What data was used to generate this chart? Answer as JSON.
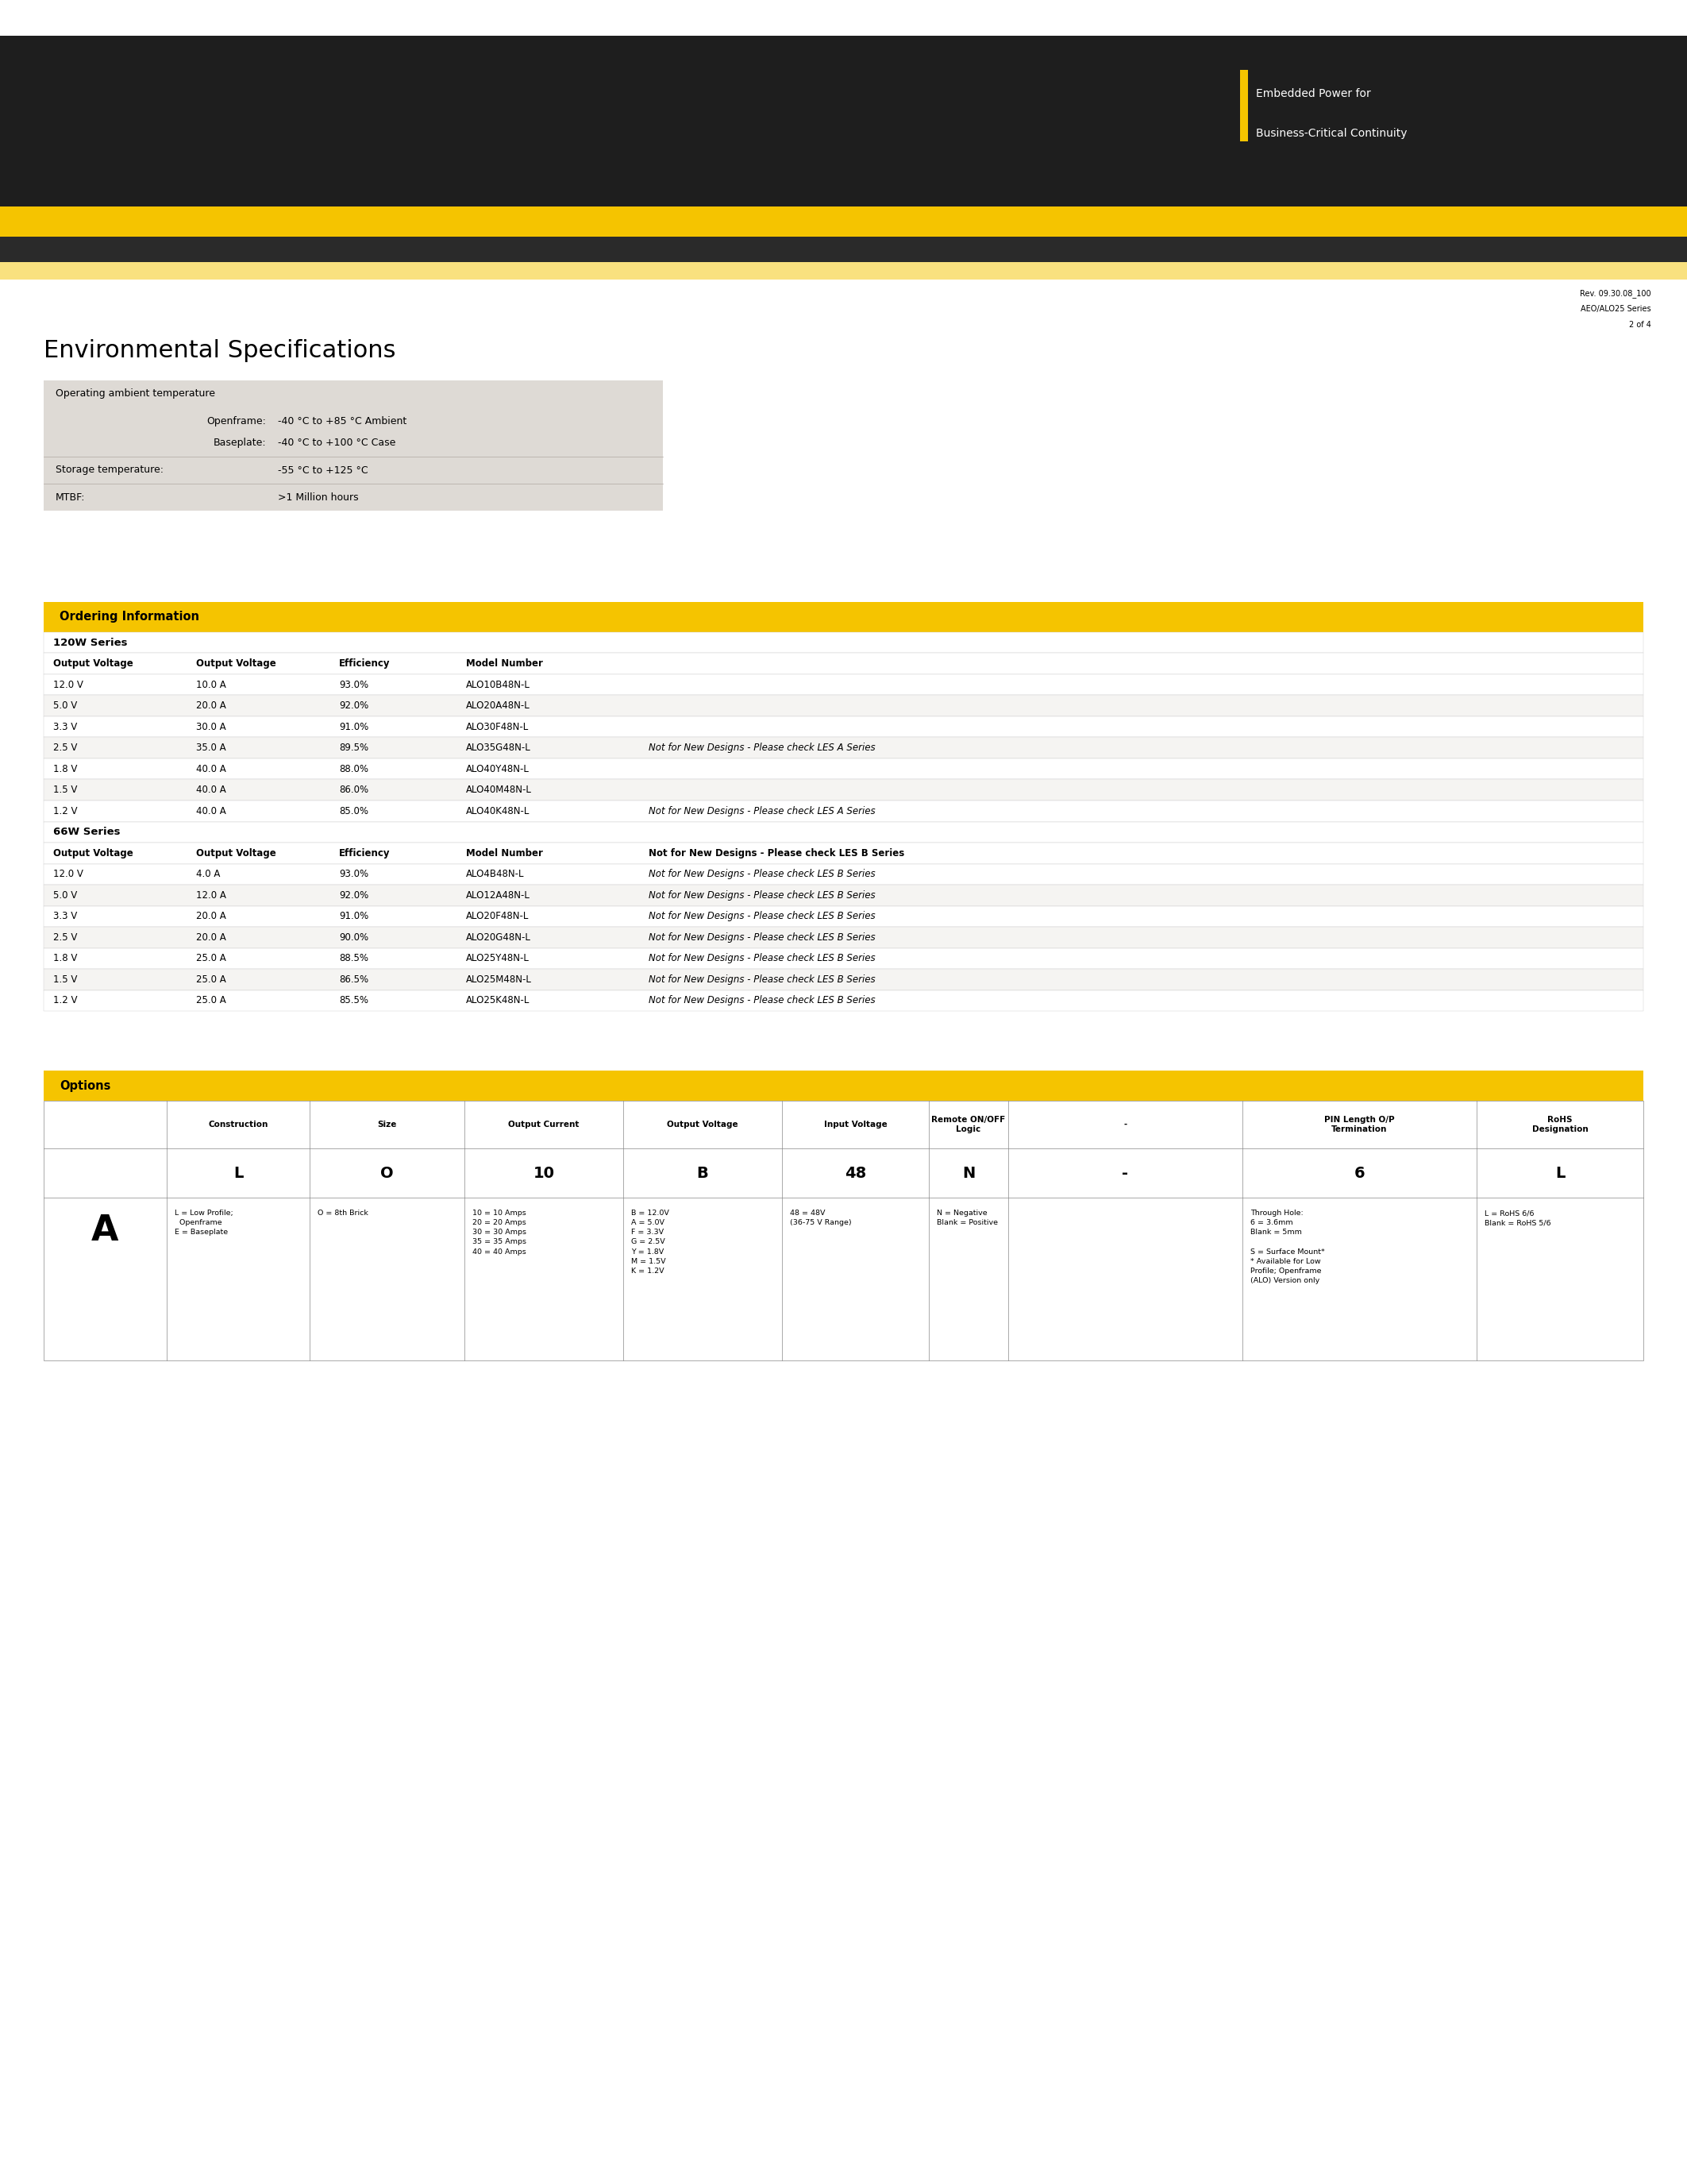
{
  "page_bg": "#ffffff",
  "header_bg": "#1e1e1e",
  "stripe1_color": "#f5c400",
  "stripe2_color": "#2a2a2a",
  "accent_rect_color": "#f5c400",
  "header_text1": "Embedded Power for",
  "header_text2": "Business-Critical Continuity",
  "rev_line1": "Rev. 09.30.08_100",
  "rev_line2": "AEO/ALO25 Series",
  "rev_line3": "2 of 4",
  "env_title": "Environmental Specifications",
  "env_table_bg": "#dedad5",
  "ordering_title": "Ordering Information",
  "ordering_header_bg": "#f5c400",
  "ordering_row_bg_alt": "#f0eeec",
  "ordering_table_border": "#bbbbbb",
  "col_headers": [
    "Output Voltage",
    "Output Voltage",
    "Efficiency",
    "Model Number"
  ],
  "series_120w_rows": [
    [
      "12.0 V",
      "10.0 A",
      "93.0%",
      "ALO10B48N-L",
      ""
    ],
    [
      "5.0 V",
      "20.0 A",
      "92.0%",
      "ALO20A48N-L",
      ""
    ],
    [
      "3.3 V",
      "30.0 A",
      "91.0%",
      "ALO30F48N-L",
      ""
    ],
    [
      "2.5 V",
      "35.0 A",
      "89.5%",
      "ALO35G48N-L",
      "Not for New Designs - Please check LES A Series"
    ],
    [
      "1.8 V",
      "40.0 A",
      "88.0%",
      "ALO40Y48N-L",
      ""
    ],
    [
      "1.5 V",
      "40.0 A",
      "86.0%",
      "ALO40M48N-L",
      ""
    ],
    [
      "1.2 V",
      "40.0 A",
      "85.0%",
      "ALO40K48N-L",
      "Not for New Designs - Please check LES A Series"
    ]
  ],
  "series_66w_rows": [
    [
      "12.0 V",
      "4.0 A",
      "93.0%",
      "ALO4B48N-L",
      "Not for New Designs - Please check LES B Series"
    ],
    [
      "5.0 V",
      "12.0 A",
      "92.0%",
      "ALO12A48N-L",
      "Not for New Designs - Please check LES B Series"
    ],
    [
      "3.3 V",
      "20.0 A",
      "91.0%",
      "ALO20F48N-L",
      "Not for New Designs - Please check LES B Series"
    ],
    [
      "2.5 V",
      "20.0 A",
      "90.0%",
      "ALO20G48N-L",
      "Not for New Designs - Please check LES B Series"
    ],
    [
      "1.8 V",
      "25.0 A",
      "88.5%",
      "ALO25Y48N-L",
      "Not for New Designs - Please check LES B Series"
    ],
    [
      "1.5 V",
      "25.0 A",
      "86.5%",
      "ALO25M48N-L",
      "Not for New Designs - Please check LES B Series"
    ],
    [
      "1.2 V",
      "25.0 A",
      "85.5%",
      "ALO25K48N-L",
      "Not for New Designs - Please check LES B Series"
    ]
  ],
  "options_title": "Options",
  "options_col_headers": [
    "Construction",
    "Size",
    "Output Current",
    "Output Voltage",
    "Input Voltage",
    "Remote ON/OFF\nLogic",
    "-",
    "PIN Length O/P\nTermination",
    "RoHS\nDesignation"
  ],
  "options_row1": [
    "L",
    "O",
    "10",
    "B",
    "48",
    "N",
    "-",
    "6",
    "L"
  ],
  "options_row2": [
    "L = Low Profile;\n  Openframe\nE = Baseplate",
    "O = 8th Brick",
    "10 = 10 Amps\n20 = 20 Amps\n30 = 30 Amps\n35 = 35 Amps\n40 = 40 Amps",
    "B = 12.0V\nA = 5.0V\nF = 3.3V\nG = 2.5V\nY = 1.8V\nM = 1.5V\nK = 1.2V",
    "48 = 48V\n(36-75 V Range)",
    "N = Negative\nBlank = Positive",
    "",
    "Through Hole:\n6 = 3.6mm\nBlank = 5mm\n\nS = Surface Mount*\n* Available for Low\nProfile; Openframe\n(ALO) Version only",
    "L = RoHS 6/6\nBlank = RoHS 5/6"
  ]
}
